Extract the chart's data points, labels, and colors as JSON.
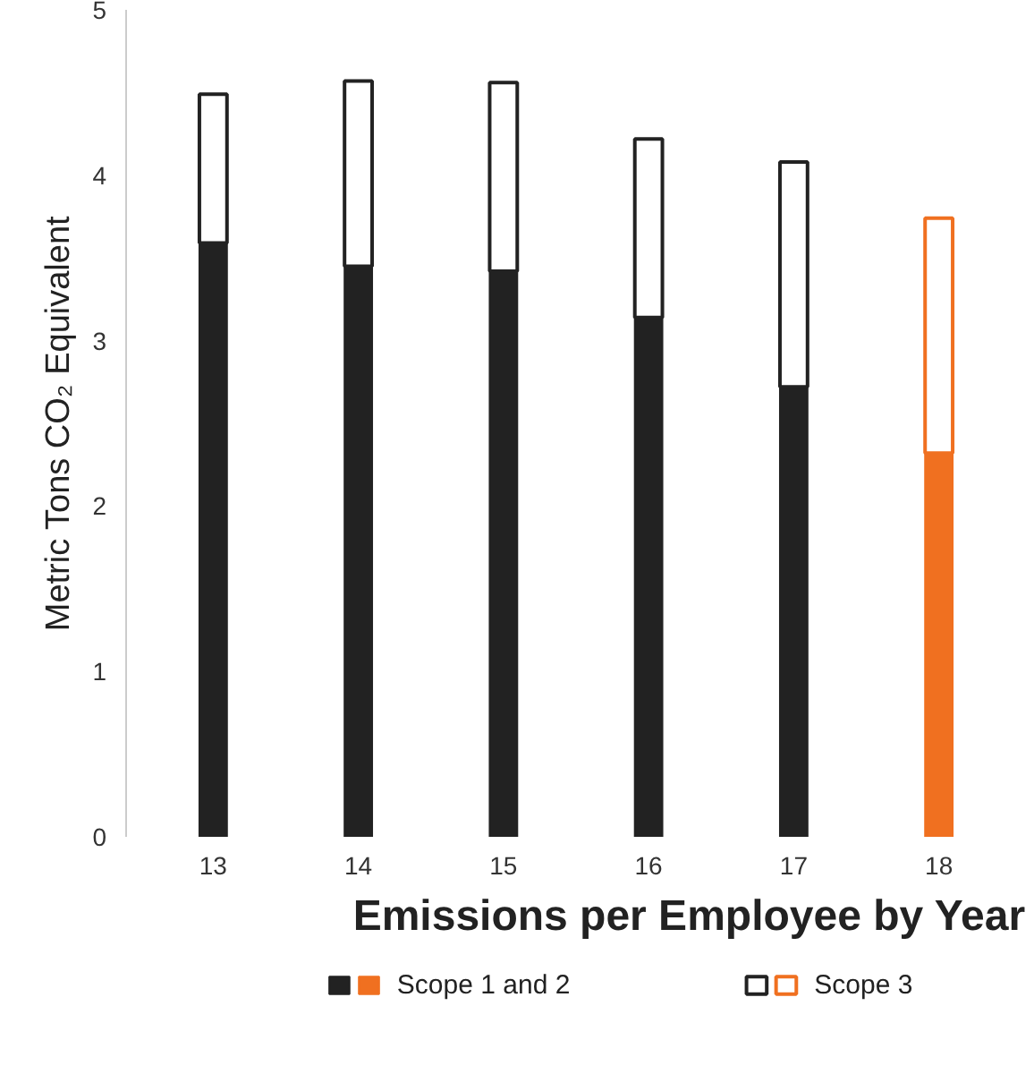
{
  "chart_data": {
    "type": "bar",
    "title": "Emissions per Employee by Year",
    "ylabel": "Metric Tons CO₂ Equivalent",
    "categories": [
      "13",
      "14",
      "15",
      "16",
      "17",
      "18"
    ],
    "stacked": true,
    "series": [
      {
        "name": "Scope 1 and 2",
        "colors": [
          "#222222",
          "#222222",
          "#222222",
          "#222222",
          "#222222",
          "#f07020"
        ],
        "values": [
          3.59,
          3.45,
          3.42,
          3.14,
          2.72,
          2.32
        ]
      },
      {
        "name": "Scope 3",
        "colors": [
          "#222222",
          "#222222",
          "#222222",
          "#222222",
          "#222222",
          "#f07020"
        ],
        "values": [
          0.9,
          1.12,
          1.14,
          1.08,
          1.36,
          1.42
        ]
      }
    ],
    "ylim": [
      0,
      5
    ],
    "yticks": [
      0,
      1,
      2,
      3,
      4,
      5
    ],
    "grid": false,
    "legend": "bottom"
  }
}
